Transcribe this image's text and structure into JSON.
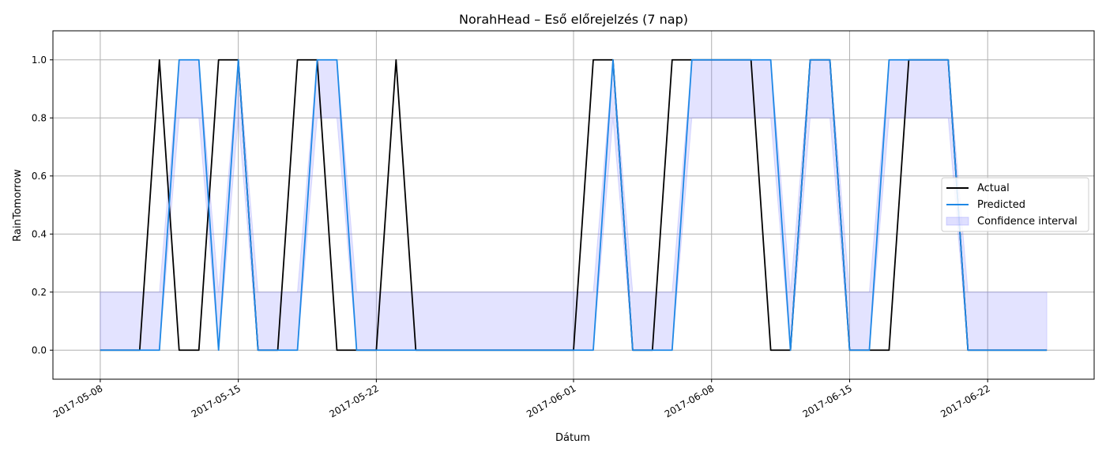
{
  "chart_data": {
    "type": "line",
    "title": "NorahHead – Eső előrejelzés (7 nap)",
    "xlabel": "Dátum",
    "ylabel": "RainTomorrow",
    "xlim": [
      "2017-05-05.6",
      "2017-06-28.6"
    ],
    "ylim": [
      -0.1,
      1.1
    ],
    "yticks": [
      "0.0",
      "0.2",
      "0.4",
      "0.6",
      "0.8",
      "1.0"
    ],
    "xticks": [
      "2017-05-08",
      "2017-05-15",
      "2017-05-22",
      "2017-06-01",
      "2017-06-08",
      "2017-06-15",
      "2017-06-22"
    ],
    "grid": true,
    "legend_position": "center right",
    "x": [
      "2017-05-08",
      "2017-05-09",
      "2017-05-10",
      "2017-05-11",
      "2017-05-12",
      "2017-05-13",
      "2017-05-14",
      "2017-05-15",
      "2017-05-16",
      "2017-05-17",
      "2017-05-18",
      "2017-05-19",
      "2017-05-20",
      "2017-05-21",
      "2017-05-22",
      "2017-05-23",
      "2017-05-24",
      "2017-05-25",
      "2017-05-26",
      "2017-05-27",
      "2017-05-28",
      "2017-05-29",
      "2017-05-30",
      "2017-05-31",
      "2017-06-01",
      "2017-06-02",
      "2017-06-03",
      "2017-06-04",
      "2017-06-05",
      "2017-06-06",
      "2017-06-07",
      "2017-06-08",
      "2017-06-09",
      "2017-06-10",
      "2017-06-11",
      "2017-06-12",
      "2017-06-13",
      "2017-06-14",
      "2017-06-15",
      "2017-06-16",
      "2017-06-17",
      "2017-06-18",
      "2017-06-19",
      "2017-06-20",
      "2017-06-21",
      "2017-06-22",
      "2017-06-23",
      "2017-06-24",
      "2017-06-25"
    ],
    "series": [
      {
        "name": "Actual",
        "color": "#000000",
        "values": [
          0,
          0,
          0,
          1,
          0,
          0,
          1,
          1,
          0,
          0,
          1,
          1,
          0,
          0,
          0,
          1,
          0,
          0,
          0,
          0,
          0,
          0,
          0,
          0,
          0,
          1,
          1,
          0,
          0,
          1,
          1,
          1,
          1,
          1,
          0,
          0,
          1,
          1,
          0,
          0,
          0,
          1,
          1,
          1,
          0,
          0,
          0,
          0,
          0
        ]
      },
      {
        "name": "Predicted",
        "color": "#1e88e5",
        "values": [
          0,
          0,
          0,
          0,
          1,
          1,
          0,
          1,
          0,
          0,
          0,
          1,
          1,
          0,
          0,
          0,
          0,
          0,
          0,
          0,
          0,
          0,
          0,
          0,
          0,
          0,
          1,
          0,
          0,
          0,
          1,
          1,
          1,
          1,
          1,
          0,
          1,
          1,
          0,
          0,
          1,
          1,
          1,
          1,
          0,
          0,
          0,
          0,
          0
        ]
      }
    ],
    "band": {
      "name": "Confidence interval",
      "color": "#8080ff",
      "lower": [
        0,
        0,
        0,
        0,
        0.8,
        0.8,
        0,
        0.8,
        0,
        0,
        0,
        0.8,
        0.8,
        0,
        0,
        0,
        0,
        0,
        0,
        0,
        0,
        0,
        0,
        0,
        0,
        0,
        0.8,
        0,
        0,
        0,
        0.8,
        0.8,
        0.8,
        0.8,
        0.8,
        0,
        0.8,
        0.8,
        0,
        0,
        0.8,
        0.8,
        0.8,
        0.8,
        0,
        0,
        0,
        0,
        0
      ],
      "upper": [
        0.2,
        0.2,
        0.2,
        0.2,
        1,
        1,
        0.2,
        1,
        0.2,
        0.2,
        0.2,
        1,
        1,
        0.2,
        0.2,
        0.2,
        0.2,
        0.2,
        0.2,
        0.2,
        0.2,
        0.2,
        0.2,
        0.2,
        0.2,
        0.2,
        1,
        0.2,
        0.2,
        0.2,
        1,
        1,
        1,
        1,
        1,
        0.2,
        1,
        1,
        0.2,
        0.2,
        1,
        1,
        1,
        1,
        0.2,
        0.2,
        0.2,
        0.2,
        0.2
      ]
    }
  }
}
